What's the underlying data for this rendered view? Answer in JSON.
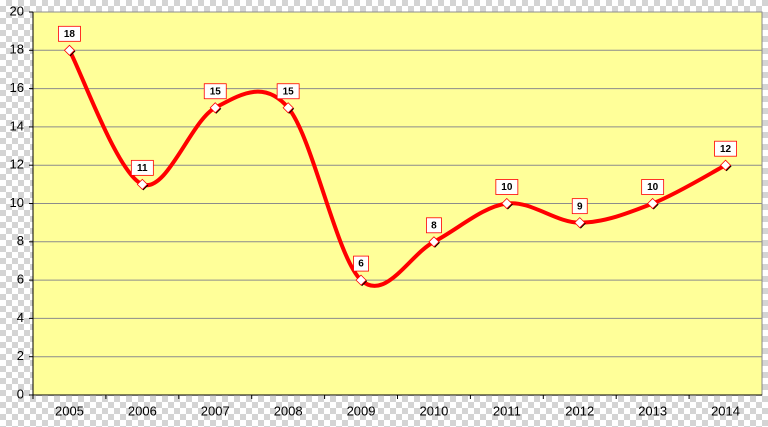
{
  "chart_data": {
    "type": "line",
    "categories": [
      "2005",
      "2006",
      "2007",
      "2008",
      "2009",
      "2010",
      "2011",
      "2012",
      "2013",
      "2014"
    ],
    "values": [
      18,
      11,
      15,
      15,
      6,
      8,
      10,
      9,
      10,
      12
    ],
    "color": "#ff0000",
    "plot_background": "#ffff99",
    "smooth": true,
    "data_labels": true,
    "ylim": [
      0,
      20
    ],
    "yticks": [
      0,
      2,
      4,
      6,
      8,
      10,
      12,
      14,
      16,
      18,
      20
    ],
    "grid": true
  }
}
